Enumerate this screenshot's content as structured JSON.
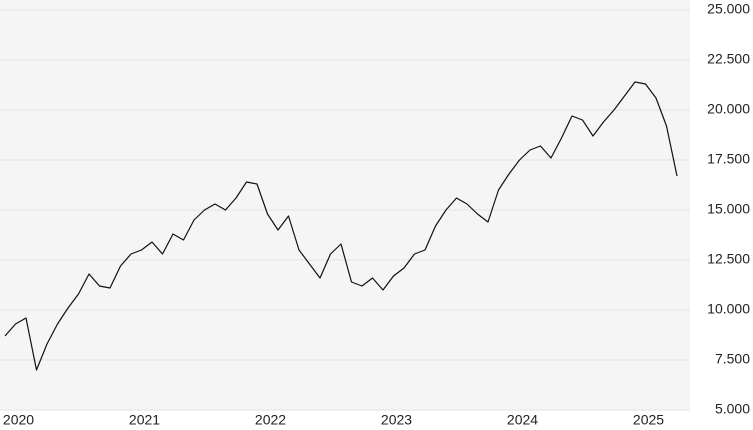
{
  "chart_data": {
    "type": "line",
    "categories": [
      null,
      "2020",
      null,
      null,
      null,
      null,
      null,
      null,
      null,
      null,
      null,
      null,
      null,
      "2021",
      null,
      null,
      null,
      null,
      null,
      null,
      null,
      null,
      null,
      null,
      null,
      "2022",
      null,
      null,
      null,
      null,
      null,
      null,
      null,
      null,
      null,
      null,
      null,
      "2023",
      null,
      null,
      null,
      null,
      null,
      null,
      null,
      null,
      null,
      null,
      null,
      "2024",
      null,
      null,
      null,
      null,
      null,
      null,
      null,
      null,
      null,
      null,
      null,
      "2025",
      null,
      null,
      null
    ],
    "series": [
      {
        "color": "#111111",
        "values": [
          8700,
          9300,
          9600,
          7000,
          8300,
          9300,
          10100,
          10800,
          11800,
          11200,
          11100,
          12200,
          12800,
          13000,
          13400,
          12800,
          13800,
          13500,
          14500,
          15000,
          15300,
          15000,
          15600,
          16400,
          16300,
          14800,
          14000,
          14700,
          13000,
          12300,
          11600,
          12800,
          13300,
          11400,
          11200,
          11600,
          11000,
          11700,
          12100,
          12800,
          13000,
          14200,
          15000,
          15600,
          15300,
          14800,
          14400,
          16000,
          16800,
          17500,
          18000,
          18200,
          17600,
          18600,
          19700,
          19500,
          18700,
          19400,
          20000,
          20700,
          21400,
          21300,
          20600,
          19200,
          16700
        ]
      }
    ],
    "ylim": [
      5000,
      25000
    ],
    "yticks": [
      {
        "value": 5000,
        "label": "5.000"
      },
      {
        "value": 7500,
        "label": "7.500"
      },
      {
        "value": 10000,
        "label": "10.000"
      },
      {
        "value": 12500,
        "label": "12.500"
      },
      {
        "value": 15000,
        "label": "15.000"
      },
      {
        "value": 17500,
        "label": "17.500"
      },
      {
        "value": 20000,
        "label": "20.000"
      },
      {
        "value": 22500,
        "label": "22.500"
      },
      {
        "value": 25000,
        "label": "25.000"
      }
    ],
    "grid": true
  }
}
